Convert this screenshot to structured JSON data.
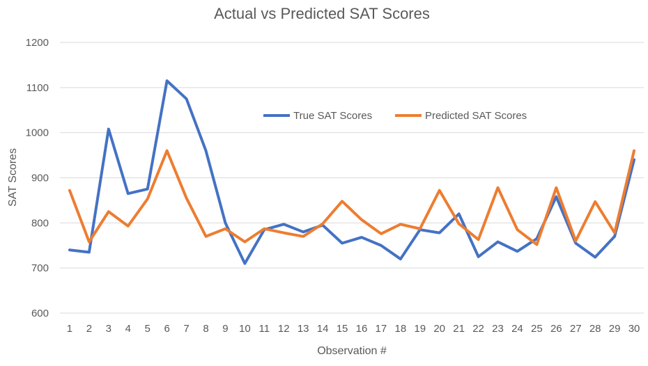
{
  "chart_data": {
    "type": "line",
    "title": "Actual vs Predicted SAT Scores",
    "xlabel": "Observation #",
    "ylabel": "SAT Scores",
    "ylim": [
      600,
      1200
    ],
    "yticks": [
      600,
      700,
      800,
      900,
      1000,
      1100,
      1200
    ],
    "grid": "horizontal",
    "legend_position": "top-right inside plot",
    "categories": [
      "1",
      "2",
      "3",
      "4",
      "5",
      "6",
      "7",
      "8",
      "9",
      "10",
      "11",
      "12",
      "13",
      "14",
      "15",
      "16",
      "17",
      "18",
      "19",
      "20",
      "21",
      "22",
      "23",
      "24",
      "25",
      "26",
      "27",
      "28",
      "29",
      "30"
    ],
    "series": [
      {
        "name": "True SAT Scores",
        "color": "#4472C4",
        "values": [
          740,
          735,
          1008,
          865,
          875,
          1115,
          1075,
          960,
          800,
          710,
          785,
          797,
          780,
          795,
          755,
          768,
          750,
          720,
          785,
          778,
          820,
          725,
          758,
          737,
          765,
          858,
          755,
          724,
          770,
          940
        ]
      },
      {
        "name": "Predicted SAT Scores",
        "color": "#ED7D31",
        "values": [
          872,
          758,
          825,
          793,
          853,
          960,
          855,
          770,
          787,
          758,
          787,
          778,
          770,
          798,
          848,
          807,
          776,
          797,
          787,
          872,
          798,
          763,
          878,
          785,
          752,
          878,
          760,
          847,
          778,
          960
        ]
      }
    ]
  }
}
